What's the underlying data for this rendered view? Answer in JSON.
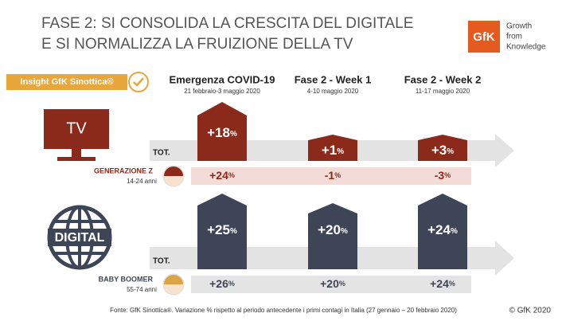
{
  "header": {
    "title_line1": "FASE 2: SI CONSOLIDA LA CRESCITA DEL DIGITALE",
    "title_line2": "E SI NORMALIZZA LA FRUIZIONE DELLA TV",
    "logo": "GfK",
    "tagline": [
      "Growth",
      "from",
      "Knowledge"
    ]
  },
  "badge": "Insight GfK Sinottica®",
  "columns": [
    {
      "title": "Emergenza COVID-19",
      "dates": "21 febbraio-3 maggio 2020"
    },
    {
      "title": "Fase 2 - Week 1",
      "dates": "4-10 maggio 2020"
    },
    {
      "title": "Fase 2 - Week 2",
      "dates": "11-17 maggio 2020"
    }
  ],
  "sections": [
    {
      "icon": "TV",
      "total_label": "TOT.",
      "totals": [
        {
          "value": "+18",
          "unit": "%"
        },
        {
          "value": "+1",
          "unit": "%"
        },
        {
          "value": "+3",
          "unit": "%"
        }
      ],
      "segment": {
        "name": "GENERAZIONE Z",
        "ages": "14-24 anni",
        "values": [
          {
            "value": "+24",
            "unit": "%"
          },
          {
            "value": "-1",
            "unit": "%"
          },
          {
            "value": "-3",
            "unit": "%"
          }
        ]
      }
    },
    {
      "icon": "DIGITAL",
      "total_label": "TOT.",
      "totals": [
        {
          "value": "+25",
          "unit": "%"
        },
        {
          "value": "+20",
          "unit": "%"
        },
        {
          "value": "+24",
          "unit": "%"
        }
      ],
      "segment": {
        "name": "BABY BOOMER",
        "ages": "55-74 anni",
        "values": [
          {
            "value": "+26",
            "unit": "%"
          },
          {
            "value": "+20",
            "unit": "%"
          },
          {
            "value": "+24",
            "unit": "%"
          }
        ]
      }
    }
  ],
  "footer": {
    "source": "Fonte: GfK Sinottica®. Variazione % rispetto al periodo antecedente i primi contagi in Italia (27 gennaio – 20 febbraio 2020)",
    "copyright": "© GfK 2020"
  }
}
